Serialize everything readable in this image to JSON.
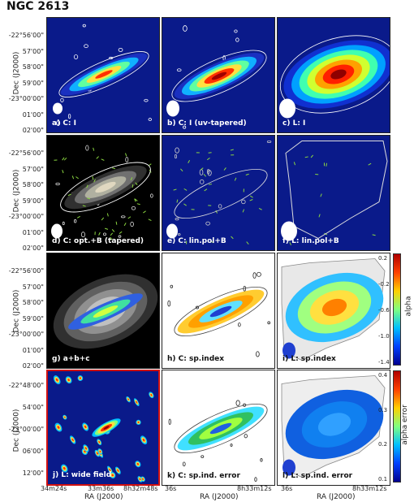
{
  "title": "NGC 2613",
  "ylabel": "Dec (J2000)",
  "xlabel": "RA (J2000)",
  "yticks_top": [
    "-22°56'00\"",
    "57'00\"",
    "58'00\"",
    "59'00\"",
    "-23°00'00\"",
    "01'00\"",
    "02'00\""
  ],
  "yticks_bottom": [
    "-22°48'00\"",
    "54'00\"",
    "-23°00'00\"",
    "06'00\"",
    "12'00\""
  ],
  "xticks": {
    "col1": [
      "34m24s",
      "33m36s",
      "8h32m48s"
    ],
    "col2": [
      "36s",
      "8h33m12s"
    ],
    "col3": [
      "36s",
      "8h33m12s"
    ]
  },
  "panels": [
    {
      "id": "a",
      "label": "a) C: I"
    },
    {
      "id": "b",
      "label": "b) C: I (uv-tapered)"
    },
    {
      "id": "c",
      "label": "c) L: I"
    },
    {
      "id": "d",
      "label": "d) C: opt.+B (tapered)"
    },
    {
      "id": "e",
      "label": "e) C: lin.pol+B"
    },
    {
      "id": "f",
      "label": "f) L: lin.pol+B"
    },
    {
      "id": "g",
      "label": "g)   a+b+c"
    },
    {
      "id": "h",
      "label": "h) C: sp.index"
    },
    {
      "id": "i",
      "label": "i) L: sp.index"
    },
    {
      "id": "j",
      "label": "j) L: wide field"
    },
    {
      "id": "k",
      "label": "k) C: sp.ind. error"
    },
    {
      "id": "l",
      "label": "l) L: sp.ind. error"
    }
  ],
  "colorbar_alpha": {
    "label": "alpha",
    "ticks": [
      "0.2",
      "-0.2",
      "-0.6",
      "-1.0",
      "-1.4"
    ]
  },
  "colorbar_error": {
    "label": "alpha error",
    "ticks": [
      "0.4",
      "0.3",
      "0.2",
      "0.1"
    ]
  }
}
